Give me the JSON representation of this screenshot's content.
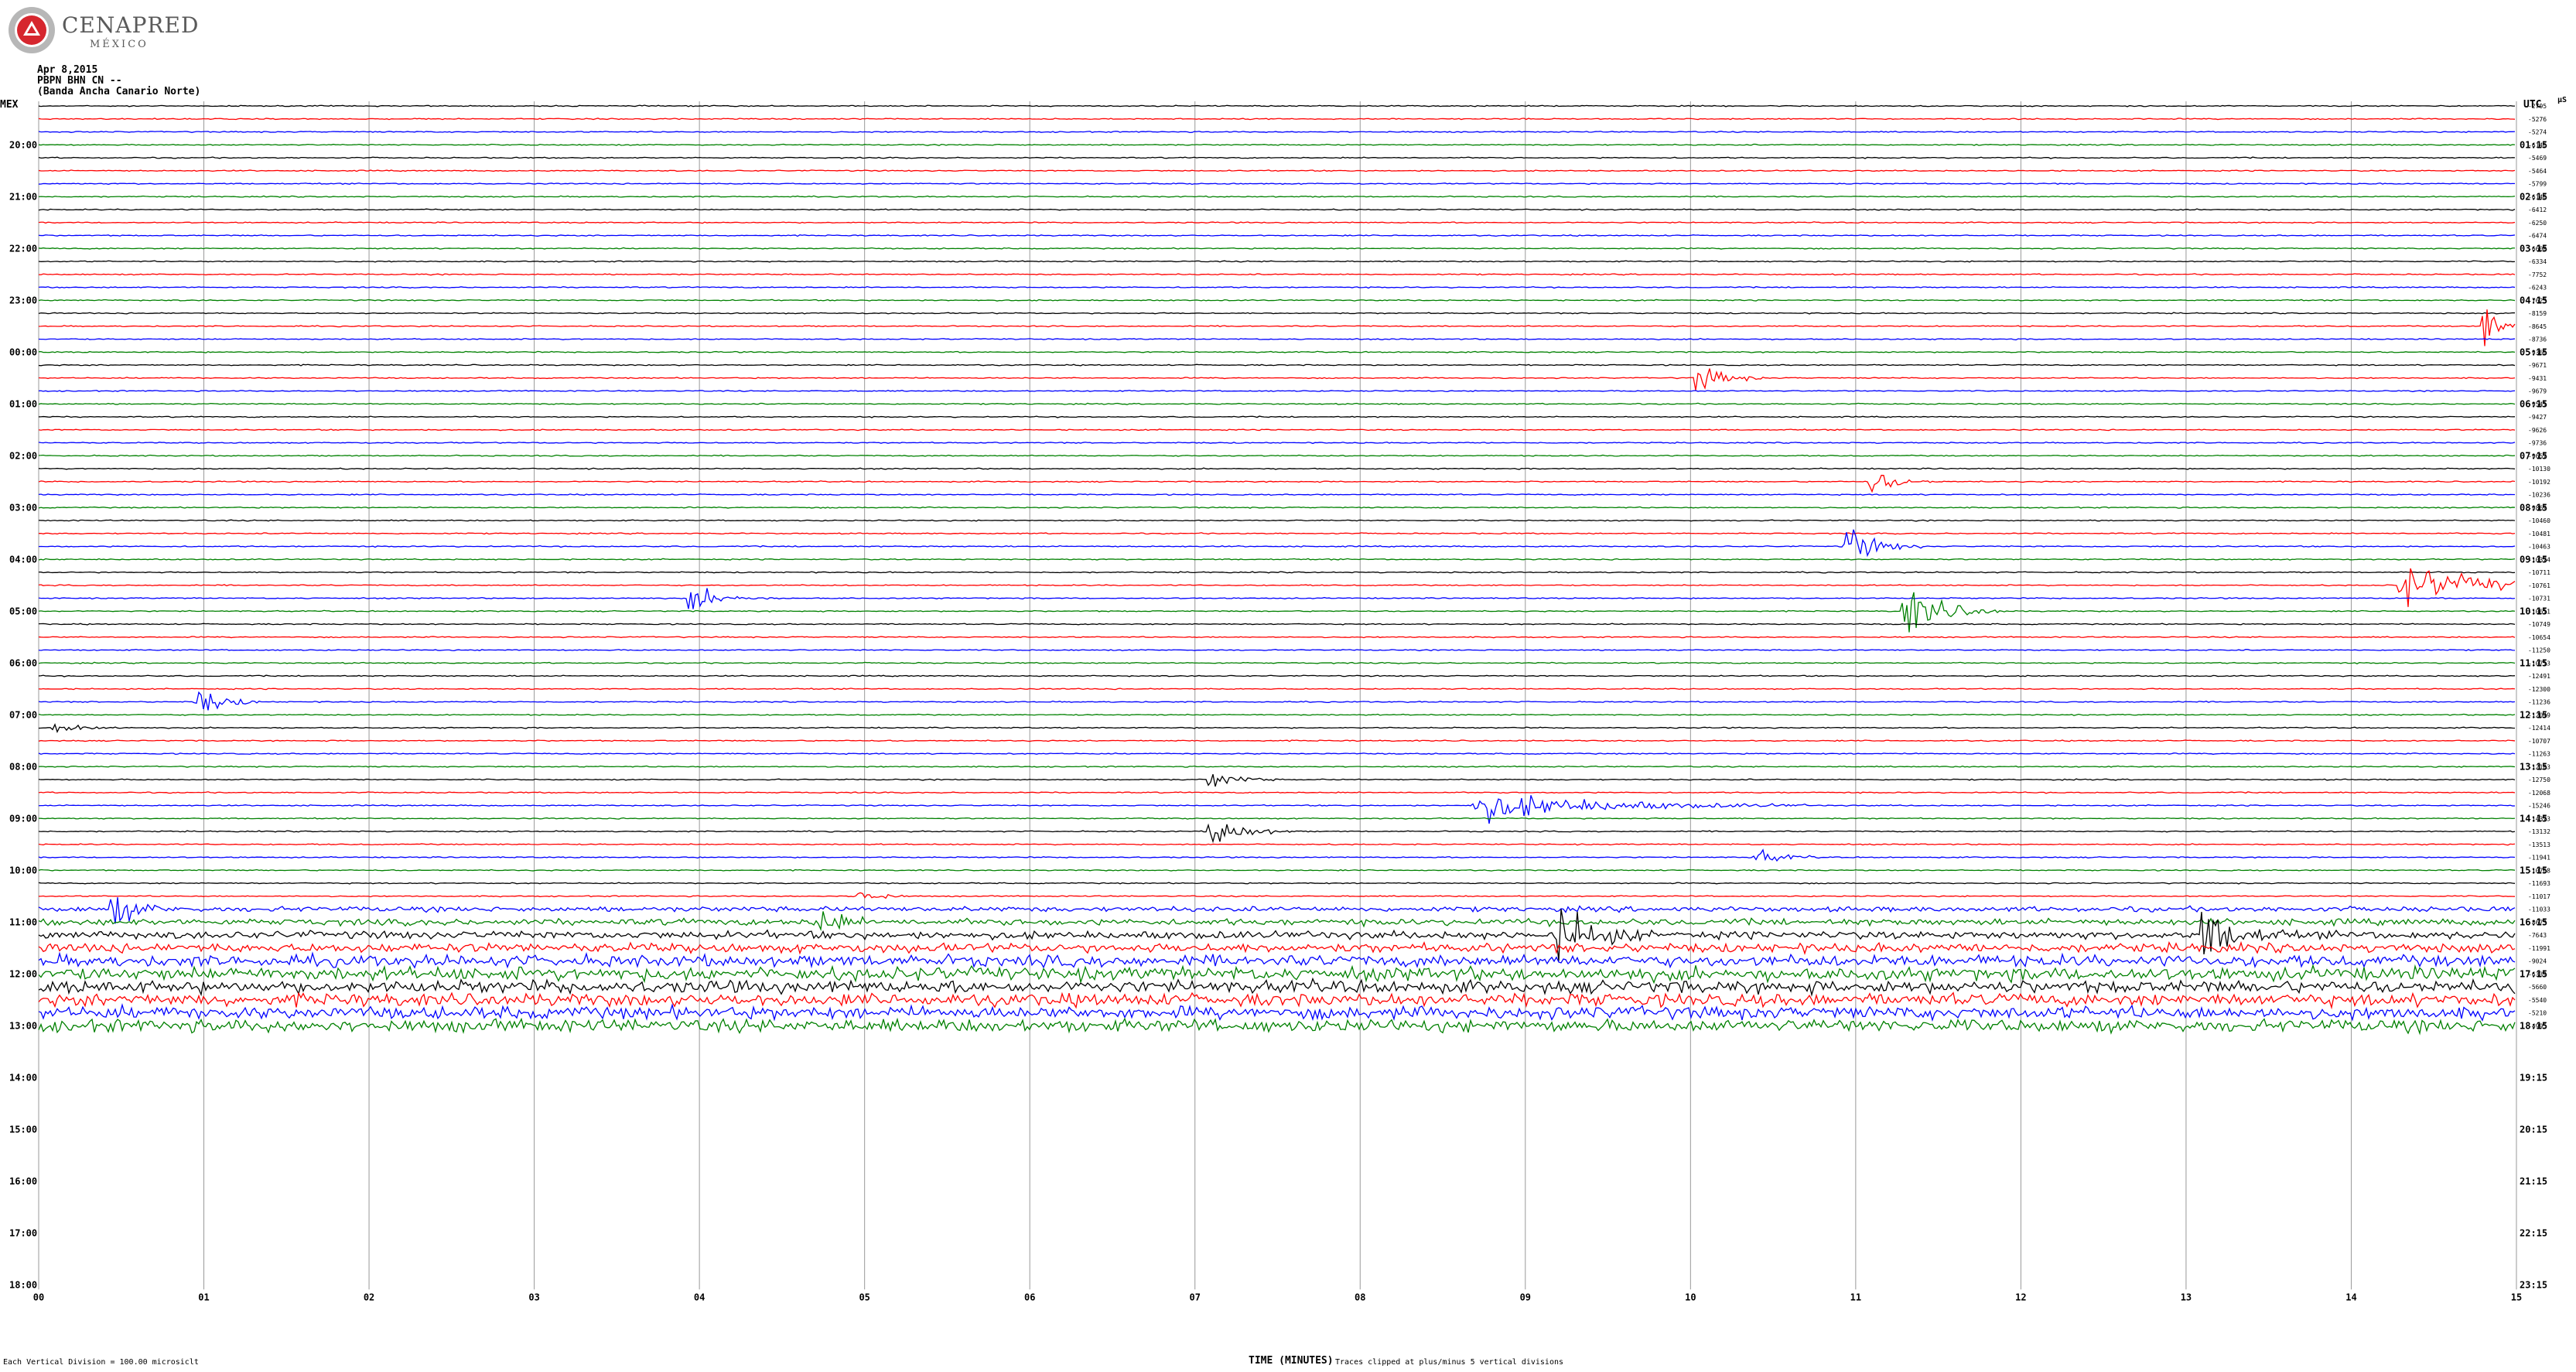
{
  "header": {
    "logo_name": "CENAPRED",
    "logo_country": "MÉXICO",
    "date": "Apr 8,2015",
    "station": "PBPN BHN CN --",
    "location": "(Banda Ancha Canario Norte)"
  },
  "left_corner": "MEX",
  "right_corner": "UTC",
  "right_corner_unit": "μS",
  "footer": {
    "left_note": "Each Vertical Division = 100.00 microsiclt",
    "x_axis_title": "TIME (MINUTES)",
    "right_note": "Traces clipped at plus/minus 5 vertical divisions"
  },
  "colors": {
    "trace_cycle": [
      "#000000",
      "#ff0000",
      "#0000ff",
      "#008000"
    ],
    "grid": "#999999"
  },
  "chart_data": {
    "type": "line",
    "title": "Apr 8,2015",
    "xlabel": "TIME (MINUTES)",
    "ylabel": "",
    "x_range": [
      0,
      15
    ],
    "x_ticks": [
      "00",
      "01",
      "02",
      "03",
      "04",
      "05",
      "06",
      "07",
      "08",
      "09",
      "10",
      "11",
      "12",
      "13",
      "14",
      "15"
    ],
    "traces_per_hour": 4,
    "recorded_traces": 72,
    "total_rows": 92,
    "left_hour_labels": [
      "20:00",
      "21:00",
      "22:00",
      "23:00",
      "00:00",
      "01:00",
      "02:00",
      "03:00",
      "04:00",
      "05:00",
      "06:00",
      "07:00",
      "08:00",
      "09:00",
      "10:00",
      "11:00",
      "12:00",
      "13:00",
      "14:00",
      "15:00",
      "16:00",
      "17:00",
      "18:00"
    ],
    "right_hour_labels": [
      "01:15",
      "02:15",
      "03:15",
      "04:15",
      "05:15",
      "06:15",
      "07:15",
      "08:15",
      "09:15",
      "10:15",
      "11:15",
      "12:15",
      "13:15",
      "14:15",
      "15:15",
      "16:15",
      "17:15",
      "18:15",
      "19:15",
      "20:15",
      "21:15",
      "22:15",
      "23:15"
    ],
    "offsets": [
      "-2795",
      "-5276",
      "-5274",
      "-6146",
      "-5469",
      "-5464",
      "-5799",
      "-6146",
      "-6412",
      "-6250",
      "-6474",
      "-6600",
      "-6334",
      "-7752",
      "-6243",
      "-7623",
      "-8159",
      "-8645",
      "-8736",
      "-9366",
      "-9671",
      "-9431",
      "-9679",
      "-9541",
      "-9427",
      "-9626",
      "-9736",
      "-9657",
      "-10130",
      "-10192",
      "-10236",
      "-9869",
      "-10460",
      "-10481",
      "-10463",
      "-10374",
      "-10711",
      "-10761",
      "-10731",
      "-10611",
      "-10749",
      "-10654",
      "-11250",
      "-10713",
      "-12491",
      "-12300",
      "-11236",
      "-12049",
      "-12414",
      "-10707",
      "-11263",
      "-12103",
      "-12750",
      "-12068",
      "-15246",
      "-14373",
      "-13132",
      "-13513",
      "-11941",
      "-10768",
      "-11693",
      "-11017",
      "-11033",
      "-8673",
      "-7643",
      "-11991",
      "-9024",
      "-6339",
      "-5660",
      "-5540",
      "-5210",
      "-4995"
    ],
    "events": [
      {
        "trace": 17,
        "minute": 14.8,
        "amplitude": 1.8,
        "duration_min": 0.25
      },
      {
        "trace": 21,
        "minute": 10.05,
        "amplitude": 1.1,
        "duration_min": 0.4
      },
      {
        "trace": 29,
        "minute": 11.1,
        "amplitude": 0.9,
        "duration_min": 0.4
      },
      {
        "trace": 34,
        "minute": 10.95,
        "amplitude": 1.5,
        "duration_min": 0.45
      },
      {
        "trace": 37,
        "minute": 14.3,
        "amplitude": 1.6,
        "duration_min": 1.2
      },
      {
        "trace": 38,
        "minute": 3.95,
        "amplitude": 0.9,
        "duration_min": 0.5
      },
      {
        "trace": 39,
        "minute": 11.3,
        "amplitude": 1.9,
        "duration_min": 0.6
      },
      {
        "trace": 46,
        "minute": 0.95,
        "amplitude": 1.2,
        "duration_min": 0.4
      },
      {
        "trace": 48,
        "minute": 0.1,
        "amplitude": 0.6,
        "duration_min": 0.4
      },
      {
        "trace": 52,
        "minute": 7.1,
        "amplitude": 0.7,
        "duration_min": 0.4
      },
      {
        "trace": 54,
        "minute": 8.7,
        "amplitude": 1.1,
        "duration_min": 2.0
      },
      {
        "trace": 56,
        "minute": 7.1,
        "amplitude": 1.2,
        "duration_min": 0.5
      },
      {
        "trace": 58,
        "minute": 10.4,
        "amplitude": 0.6,
        "duration_min": 0.4
      },
      {
        "trace": 62,
        "minute": 0.45,
        "amplitude": 1.1,
        "duration_min": 0.4
      },
      {
        "trace": 61,
        "minute": 4.95,
        "amplitude": 0.8,
        "duration_min": 0.3
      },
      {
        "trace": 64,
        "minute": 9.2,
        "amplitude": 2.4,
        "duration_min": 0.5
      },
      {
        "trace": 64,
        "minute": 13.1,
        "amplitude": 2.0,
        "duration_min": 0.5
      },
      {
        "trace": 63,
        "minute": 4.7,
        "amplitude": 1.6,
        "duration_min": 0.3
      }
    ],
    "grid": true
  }
}
